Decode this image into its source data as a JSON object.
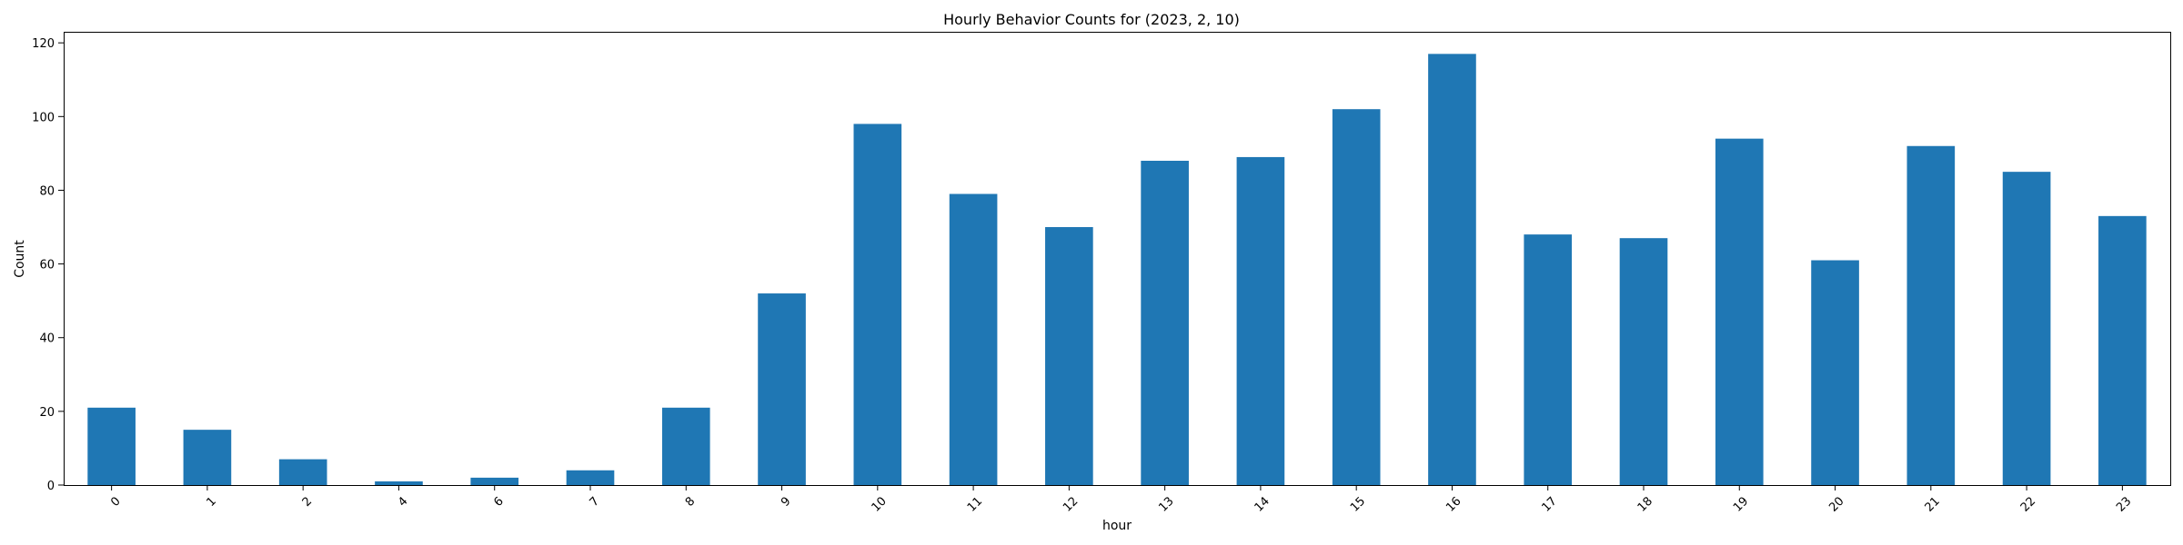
{
  "chart_data": {
    "type": "bar",
    "title": "Hourly Behavior Counts for (2023, 2, 10)",
    "xlabel": "hour",
    "ylabel": "Count",
    "categories": [
      "0",
      "1",
      "2",
      "4",
      "6",
      "7",
      "8",
      "9",
      "10",
      "11",
      "12",
      "13",
      "14",
      "15",
      "16",
      "17",
      "18",
      "19",
      "20",
      "21",
      "22",
      "23"
    ],
    "values": [
      21,
      15,
      7,
      1,
      2,
      4,
      21,
      52,
      98,
      79,
      70,
      88,
      89,
      102,
      117,
      68,
      67,
      94,
      61,
      92,
      85,
      73
    ],
    "ylim": [
      0,
      123
    ],
    "yticks": [
      0,
      20,
      40,
      60,
      80,
      100,
      120
    ],
    "grid": false,
    "legend": "none",
    "bar_color": "#1f77b4"
  }
}
